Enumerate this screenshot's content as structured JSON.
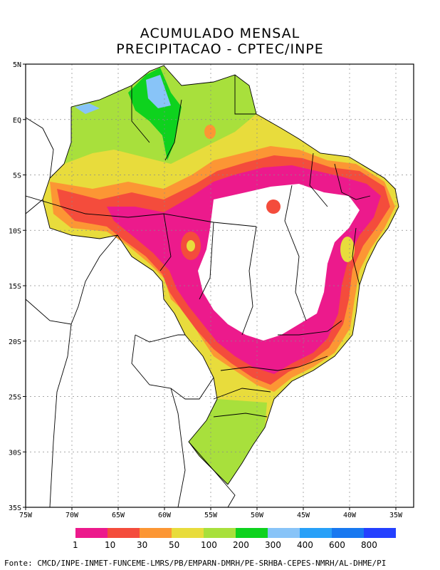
{
  "title_line1": "ACUMULADO MENSAL",
  "title_line2": "PRECIPITACAO - CPTEC/INPE",
  "lat_ticks": [
    "5N",
    "EQ",
    "5S",
    "10S",
    "15S",
    "20S",
    "25S",
    "30S",
    "35S"
  ],
  "lon_ticks": [
    "75W",
    "70W",
    "65W",
    "60W",
    "55W",
    "50W",
    "45W",
    "40W",
    "35W"
  ],
  "legend": {
    "colors": [
      "#ec1a8c",
      "#f44c3c",
      "#fc9634",
      "#e8dc3c",
      "#a8e03c",
      "#0ed21e",
      "#88c4f8",
      "#28a0f8",
      "#1878f0",
      "#2440ff"
    ],
    "labels": [
      "1",
      "10",
      "30",
      "50",
      "100",
      "200",
      "300",
      "400",
      "600",
      "800"
    ]
  },
  "source": "Fonte: CMCD/INPE-INMET-FUNCEME-LMRS/PB/EMPARN-DMRH/PE-SRHBA-CEPES-NMRH/AL-DHME/PI"
}
